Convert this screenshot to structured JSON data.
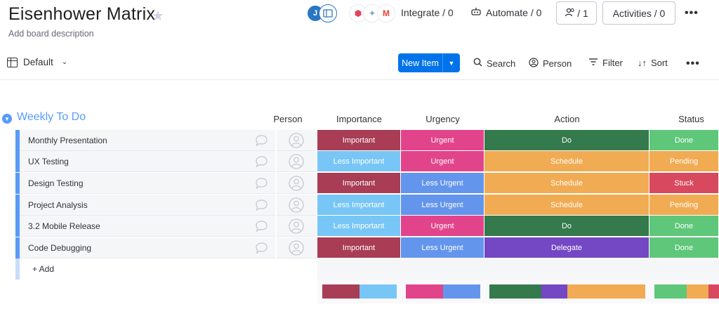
{
  "board": {
    "title": "Eisenhower Matrix",
    "description": "Add board description",
    "star_icon": "star-icon"
  },
  "header": {
    "avatar_initial": "J",
    "integrate_label": "Integrate / 0",
    "automate_label": "Automate / 0",
    "members_label": "/ 1",
    "activities_label": "Activities / 0",
    "more_label": "•••"
  },
  "toolbar": {
    "view_label": "Default",
    "new_item_label": "New Item",
    "search_label": "Search",
    "person_label": "Person",
    "filter_label": "Filter",
    "sort_label": "Sort",
    "more_label": "•••"
  },
  "group": {
    "title": "Weekly To Do",
    "color": "#579bfc",
    "columns": [
      "Person",
      "Importance",
      "Urgency",
      "Action",
      "Status"
    ],
    "add_label": "+ Add",
    "rows": [
      {
        "name": "Monthly Presentation",
        "importance": "Important",
        "urgency": "Urgent",
        "action": "Do",
        "status": "Done"
      },
      {
        "name": "UX Testing",
        "importance": "Less Important",
        "urgency": "Urgent",
        "action": "Schedule",
        "status": "Pending"
      },
      {
        "name": "Design Testing",
        "importance": "Important",
        "urgency": "Less Urgent",
        "action": "Schedule",
        "status": "Stuck"
      },
      {
        "name": "Project Analysis",
        "importance": "Less Important",
        "urgency": "Less Urgent",
        "action": "Schedule",
        "status": "Pending"
      },
      {
        "name": "3.2 Mobile Release",
        "importance": "Less Important",
        "urgency": "Urgent",
        "action": "Do",
        "status": "Done"
      },
      {
        "name": "Code Debugging",
        "importance": "Important",
        "urgency": "Less Urgent",
        "action": "Delegate",
        "status": "Done"
      }
    ]
  },
  "colors": {
    "Important": "#a83d55",
    "Less Important": "#78c6f5",
    "Urgent": "#e2448b",
    "Less Urgent": "#6495ed",
    "Do": "#347a4c",
    "Schedule": "#f1ab52",
    "Delegate": "#7447c5",
    "Done": "#5fc77a",
    "Pending": "#f1ab52",
    "Stuck": "#d8485e"
  },
  "summary": {
    "importance": [
      {
        "label": "Important",
        "fraction": 0.5
      },
      {
        "label": "Less Important",
        "fraction": 0.5
      }
    ],
    "urgency": [
      {
        "label": "Urgent",
        "fraction": 0.5
      },
      {
        "label": "Less Urgent",
        "fraction": 0.5
      }
    ],
    "action": [
      {
        "label": "Do",
        "fraction": 0.333
      },
      {
        "label": "Delegate",
        "fraction": 0.167
      },
      {
        "label": "Schedule",
        "fraction": 0.5
      }
    ],
    "status": [
      {
        "label": "Done",
        "fraction": 0.5
      },
      {
        "label": "Pending",
        "fraction": 0.333
      },
      {
        "label": "Stuck",
        "fraction": 0.167
      }
    ]
  }
}
